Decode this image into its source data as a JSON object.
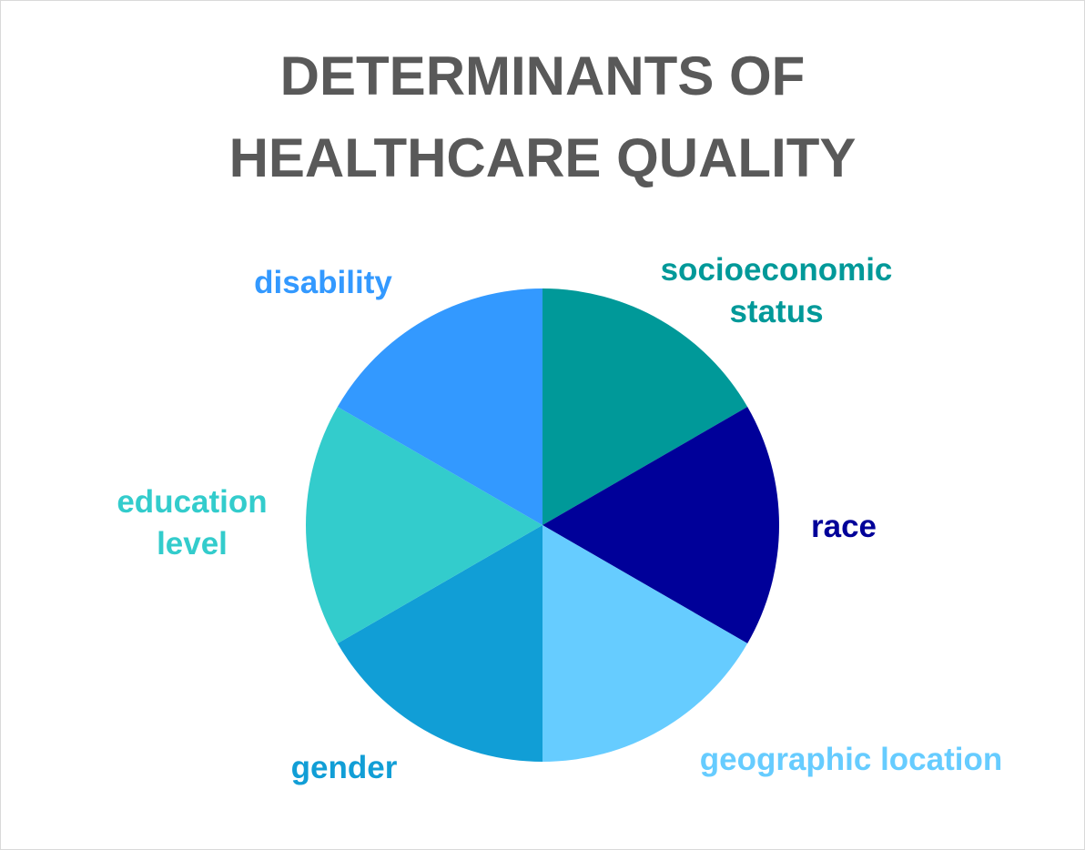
{
  "title_lines": [
    "DETERMINANTS OF",
    "HEALTHCARE QUALITY"
  ],
  "chart_data": {
    "type": "pie",
    "title": "DETERMINANTS OF HEALTHCARE QUALITY",
    "slices": [
      {
        "label": "socioeconomic status",
        "label_lines": [
          "socioeconomic",
          "status"
        ],
        "value": 1,
        "color": "#009999"
      },
      {
        "label": "race",
        "label_lines": [
          "race"
        ],
        "value": 1,
        "color": "#000099"
      },
      {
        "label": "geographic location",
        "label_lines": [
          "geographic location"
        ],
        "value": 1,
        "color": "#66CCFF"
      },
      {
        "label": "gender",
        "label_lines": [
          "gender"
        ],
        "value": 1,
        "color": "#119ED6"
      },
      {
        "label": "education level",
        "label_lines": [
          "education",
          "level"
        ],
        "value": 1,
        "color": "#33CCCC"
      },
      {
        "label": "disability",
        "label_lines": [
          "disability"
        ],
        "value": 1,
        "color": "#3399FF"
      }
    ],
    "start": "12 o'clock",
    "direction": "clockwise",
    "legend": "none",
    "data_labels": "category name, outside end"
  }
}
